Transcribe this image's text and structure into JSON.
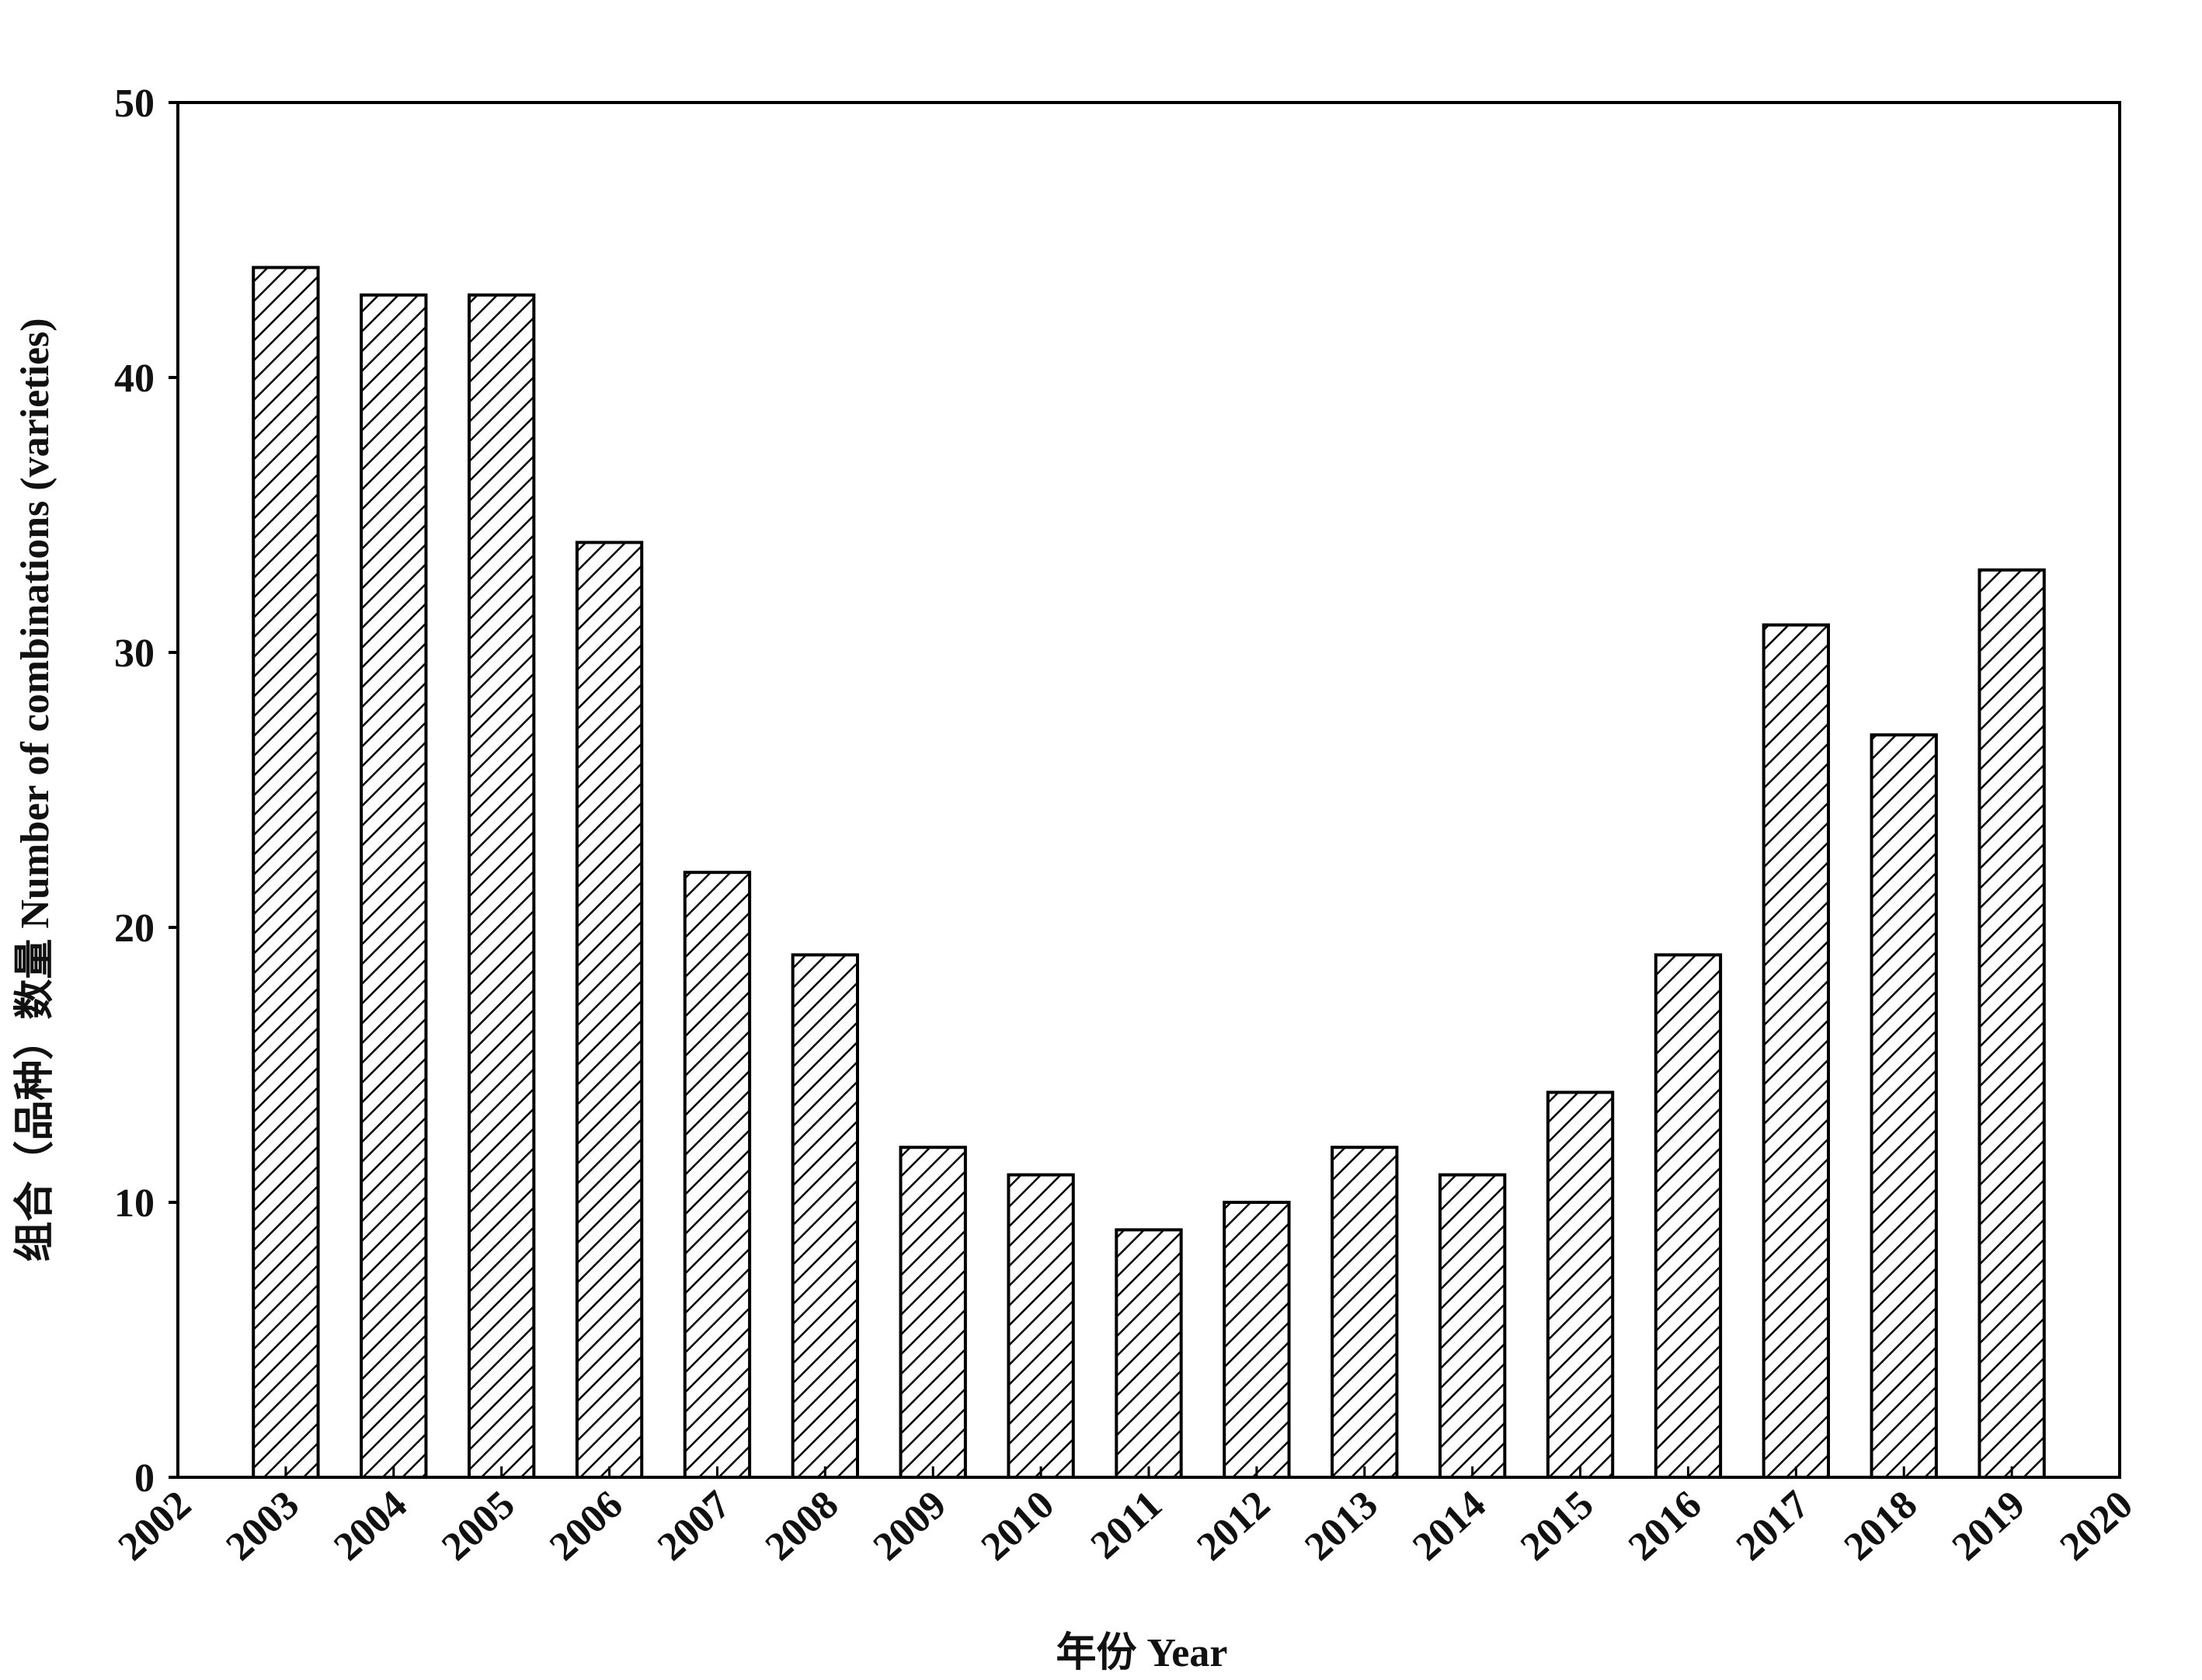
{
  "chart_data": {
    "type": "bar",
    "x_label": "年份 Year",
    "y_label": "组合（品种）数量 Number of combinations (varieties)",
    "x": [
      2003,
      2004,
      2005,
      2006,
      2007,
      2008,
      2009,
      2010,
      2011,
      2012,
      2013,
      2014,
      2015,
      2016,
      2017,
      2018,
      2019
    ],
    "values": [
      44,
      43,
      43,
      34,
      22,
      19,
      12,
      11,
      9,
      10,
      12,
      11,
      14,
      19,
      31,
      27,
      33
    ],
    "color": "#000000",
    "xlim": [
      2002,
      2020
    ],
    "xticks": [
      2002,
      2003,
      2004,
      2005,
      2006,
      2007,
      2008,
      2009,
      2010,
      2011,
      2012,
      2013,
      2014,
      2015,
      2016,
      2017,
      2018,
      2019,
      2020
    ],
    "ylim": [
      0,
      50
    ],
    "yticks": [
      0,
      10,
      20,
      30,
      40,
      50
    ]
  }
}
